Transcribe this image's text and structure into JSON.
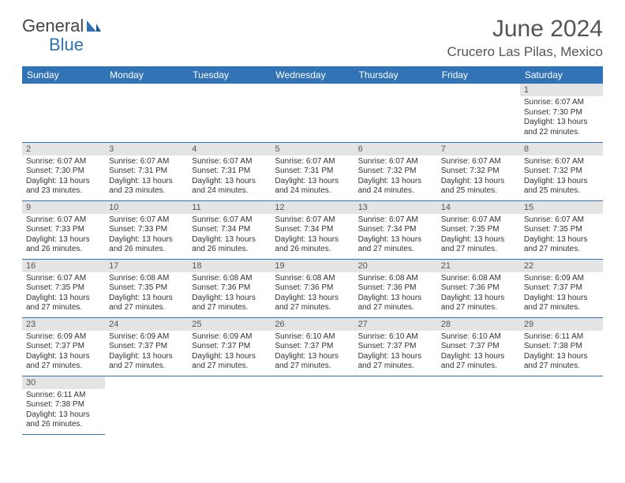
{
  "logo": {
    "text1": "General",
    "text2": "Blue"
  },
  "title": "June 2024",
  "location": "Crucero Las Pilas, Mexico",
  "colors": {
    "accent": "#3173b5",
    "header_bg": "#3173b5",
    "daynum_bg": "#e4e4e4"
  },
  "weekdays": [
    "Sunday",
    "Monday",
    "Tuesday",
    "Wednesday",
    "Thursday",
    "Friday",
    "Saturday"
  ],
  "weeks": [
    [
      null,
      null,
      null,
      null,
      null,
      null,
      {
        "n": "1",
        "sr": "Sunrise: 6:07 AM",
        "ss": "Sunset: 7:30 PM",
        "dl": "Daylight: 13 hours and 22 minutes."
      }
    ],
    [
      {
        "n": "2",
        "sr": "Sunrise: 6:07 AM",
        "ss": "Sunset: 7:30 PM",
        "dl": "Daylight: 13 hours and 23 minutes."
      },
      {
        "n": "3",
        "sr": "Sunrise: 6:07 AM",
        "ss": "Sunset: 7:31 PM",
        "dl": "Daylight: 13 hours and 23 minutes."
      },
      {
        "n": "4",
        "sr": "Sunrise: 6:07 AM",
        "ss": "Sunset: 7:31 PM",
        "dl": "Daylight: 13 hours and 24 minutes."
      },
      {
        "n": "5",
        "sr": "Sunrise: 6:07 AM",
        "ss": "Sunset: 7:31 PM",
        "dl": "Daylight: 13 hours and 24 minutes."
      },
      {
        "n": "6",
        "sr": "Sunrise: 6:07 AM",
        "ss": "Sunset: 7:32 PM",
        "dl": "Daylight: 13 hours and 24 minutes."
      },
      {
        "n": "7",
        "sr": "Sunrise: 6:07 AM",
        "ss": "Sunset: 7:32 PM",
        "dl": "Daylight: 13 hours and 25 minutes."
      },
      {
        "n": "8",
        "sr": "Sunrise: 6:07 AM",
        "ss": "Sunset: 7:32 PM",
        "dl": "Daylight: 13 hours and 25 minutes."
      }
    ],
    [
      {
        "n": "9",
        "sr": "Sunrise: 6:07 AM",
        "ss": "Sunset: 7:33 PM",
        "dl": "Daylight: 13 hours and 26 minutes."
      },
      {
        "n": "10",
        "sr": "Sunrise: 6:07 AM",
        "ss": "Sunset: 7:33 PM",
        "dl": "Daylight: 13 hours and 26 minutes."
      },
      {
        "n": "11",
        "sr": "Sunrise: 6:07 AM",
        "ss": "Sunset: 7:34 PM",
        "dl": "Daylight: 13 hours and 26 minutes."
      },
      {
        "n": "12",
        "sr": "Sunrise: 6:07 AM",
        "ss": "Sunset: 7:34 PM",
        "dl": "Daylight: 13 hours and 26 minutes."
      },
      {
        "n": "13",
        "sr": "Sunrise: 6:07 AM",
        "ss": "Sunset: 7:34 PM",
        "dl": "Daylight: 13 hours and 27 minutes."
      },
      {
        "n": "14",
        "sr": "Sunrise: 6:07 AM",
        "ss": "Sunset: 7:35 PM",
        "dl": "Daylight: 13 hours and 27 minutes."
      },
      {
        "n": "15",
        "sr": "Sunrise: 6:07 AM",
        "ss": "Sunset: 7:35 PM",
        "dl": "Daylight: 13 hours and 27 minutes."
      }
    ],
    [
      {
        "n": "16",
        "sr": "Sunrise: 6:07 AM",
        "ss": "Sunset: 7:35 PM",
        "dl": "Daylight: 13 hours and 27 minutes."
      },
      {
        "n": "17",
        "sr": "Sunrise: 6:08 AM",
        "ss": "Sunset: 7:35 PM",
        "dl": "Daylight: 13 hours and 27 minutes."
      },
      {
        "n": "18",
        "sr": "Sunrise: 6:08 AM",
        "ss": "Sunset: 7:36 PM",
        "dl": "Daylight: 13 hours and 27 minutes."
      },
      {
        "n": "19",
        "sr": "Sunrise: 6:08 AM",
        "ss": "Sunset: 7:36 PM",
        "dl": "Daylight: 13 hours and 27 minutes."
      },
      {
        "n": "20",
        "sr": "Sunrise: 6:08 AM",
        "ss": "Sunset: 7:36 PM",
        "dl": "Daylight: 13 hours and 27 minutes."
      },
      {
        "n": "21",
        "sr": "Sunrise: 6:08 AM",
        "ss": "Sunset: 7:36 PM",
        "dl": "Daylight: 13 hours and 27 minutes."
      },
      {
        "n": "22",
        "sr": "Sunrise: 6:09 AM",
        "ss": "Sunset: 7:37 PM",
        "dl": "Daylight: 13 hours and 27 minutes."
      }
    ],
    [
      {
        "n": "23",
        "sr": "Sunrise: 6:09 AM",
        "ss": "Sunset: 7:37 PM",
        "dl": "Daylight: 13 hours and 27 minutes."
      },
      {
        "n": "24",
        "sr": "Sunrise: 6:09 AM",
        "ss": "Sunset: 7:37 PM",
        "dl": "Daylight: 13 hours and 27 minutes."
      },
      {
        "n": "25",
        "sr": "Sunrise: 6:09 AM",
        "ss": "Sunset: 7:37 PM",
        "dl": "Daylight: 13 hours and 27 minutes."
      },
      {
        "n": "26",
        "sr": "Sunrise: 6:10 AM",
        "ss": "Sunset: 7:37 PM",
        "dl": "Daylight: 13 hours and 27 minutes."
      },
      {
        "n": "27",
        "sr": "Sunrise: 6:10 AM",
        "ss": "Sunset: 7:37 PM",
        "dl": "Daylight: 13 hours and 27 minutes."
      },
      {
        "n": "28",
        "sr": "Sunrise: 6:10 AM",
        "ss": "Sunset: 7:37 PM",
        "dl": "Daylight: 13 hours and 27 minutes."
      },
      {
        "n": "29",
        "sr": "Sunrise: 6:11 AM",
        "ss": "Sunset: 7:38 PM",
        "dl": "Daylight: 13 hours and 27 minutes."
      }
    ],
    [
      {
        "n": "30",
        "sr": "Sunrise: 6:11 AM",
        "ss": "Sunset: 7:38 PM",
        "dl": "Daylight: 13 hours and 26 minutes."
      },
      null,
      null,
      null,
      null,
      null,
      null
    ]
  ]
}
